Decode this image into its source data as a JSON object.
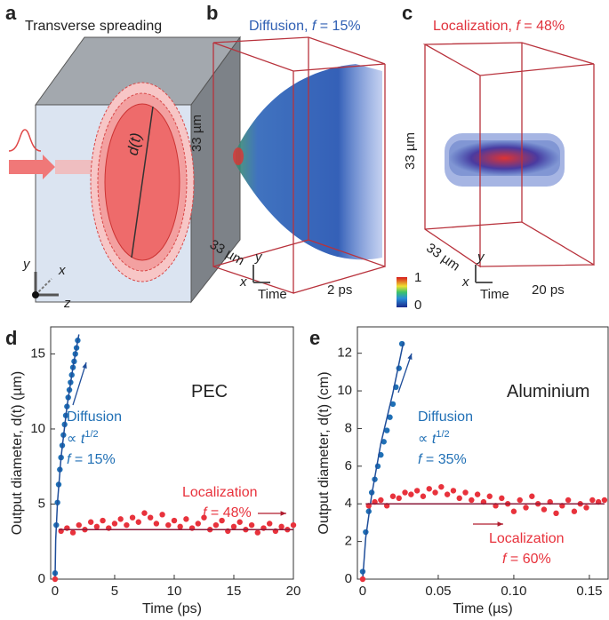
{
  "panels": {
    "a": {
      "label": "a",
      "title": "Transverse spreading",
      "diameter": "d(t)",
      "axes": [
        "y",
        "x",
        "z"
      ]
    },
    "b": {
      "label": "b",
      "title_parts": [
        {
          "text": "Diffusion, "
        },
        {
          "text": "f",
          "italic": true
        },
        {
          "text": " = 15%"
        }
      ],
      "size_y": "33 µm",
      "size_x": "33 µm",
      "axes": [
        "y",
        "x",
        "Time"
      ],
      "time": "2 ps"
    },
    "colorbar": {
      "max": 1,
      "min": 0
    },
    "c": {
      "label": "c",
      "title_parts": [
        {
          "text": "Localization, "
        },
        {
          "text": "f",
          "italic": true
        },
        {
          "text": " = 48%"
        }
      ],
      "size_y": "33 µm",
      "size_x": "33 µm",
      "axes": [
        "y",
        "x",
        "Time"
      ],
      "time": "20 ps"
    }
  },
  "chart_data": [
    {
      "type": "scatter",
      "panel": "d",
      "xlabel": "Time (ps)",
      "ylabel": "Output diameter, d(t) (µm)",
      "xlim": [
        -0.37,
        20
      ],
      "ylim": [
        0,
        16.8
      ],
      "xticks": [
        0,
        5,
        10,
        15,
        20
      ],
      "yticks": [
        0,
        5,
        10,
        15
      ],
      "series": [
        {
          "color": "#1f6fb5",
          "style": "points",
          "x": [
            0,
            0.1,
            0.2,
            0.3,
            0.4,
            0.5,
            0.6,
            0.7,
            0.8,
            0.9,
            1.0,
            1.1,
            1.2,
            1.3,
            1.4,
            1.5,
            1.6,
            1.7,
            1.8,
            1.9
          ],
          "values": [
            0.4,
            3.6,
            5.1,
            6.3,
            7.3,
            8.1,
            8.9,
            9.6,
            10.3,
            10.9,
            11.5,
            12.1,
            12.6,
            13.1,
            13.6,
            14.1,
            14.5,
            15.0,
            15.4,
            15.9
          ]
        },
        {
          "color": "#1f4e9a",
          "style": "line",
          "x": [
            0,
            0.05,
            0.2,
            0.5,
            1,
            1.5,
            2
          ],
          "values": [
            0,
            2.6,
            5.1,
            8.1,
            11.5,
            14.1,
            16.3
          ]
        },
        {
          "color": "#e8323c",
          "style": "points",
          "x": [
            0,
            0.5,
            1,
            1.5,
            2,
            2.5,
            3,
            3.5,
            4,
            4.5,
            5,
            5.5,
            6,
            6.5,
            7,
            7.5,
            8,
            8.5,
            9,
            9.5,
            10,
            10.5,
            11,
            11.5,
            12,
            12.5,
            13,
            13.5,
            14,
            14.5,
            15,
            15.5,
            16,
            16.5,
            17,
            17.5,
            18,
            18.5,
            19,
            19.5,
            20
          ],
          "values": [
            0,
            3.2,
            3.4,
            3.1,
            3.6,
            3.3,
            3.8,
            3.5,
            3.9,
            3.4,
            3.7,
            4.0,
            3.6,
            4.1,
            3.8,
            4.4,
            4.1,
            3.7,
            4.3,
            3.6,
            3.9,
            3.5,
            4.0,
            3.4,
            3.7,
            4.1,
            3.3,
            3.6,
            3.9,
            3.2,
            3.5,
            3.8,
            3.3,
            3.6,
            3.1,
            3.4,
            3.7,
            3.2,
            3.5,
            3.3,
            3.6
          ]
        },
        {
          "color": "#8b1a3a",
          "style": "line",
          "x": [
            0.3,
            20
          ],
          "values": [
            3.3,
            3.3
          ]
        }
      ],
      "annotations": [
        {
          "color": "#222222",
          "size": 20,
          "parts": [
            {
              "text": "PEC"
            }
          ]
        },
        {
          "color": "#1f6fb5",
          "size": 16,
          "parts": [
            {
              "text": "Diffusion"
            }
          ]
        },
        {
          "color": "#1f6fb5",
          "size": 16,
          "parts": [
            {
              "text": "∝ "
            },
            {
              "text": "t",
              "italic": true
            },
            {
              "text": "1/2",
              "sup": true
            }
          ]
        },
        {
          "color": "#1f6fb5",
          "size": 16,
          "parts": [
            {
              "text": "f",
              "italic": true
            },
            {
              "text": " = 15%"
            }
          ]
        },
        {
          "color": "#e8323c",
          "size": 16,
          "parts": [
            {
              "text": "Localization"
            }
          ]
        },
        {
          "color": "#e8323c",
          "size": 16,
          "parts": [
            {
              "text": "f",
              "italic": true
            },
            {
              "text": " = 48%"
            }
          ]
        }
      ]
    },
    {
      "type": "scatter",
      "panel": "e",
      "xlabel": "Time (µs)",
      "ylabel": "Output diameter, d(t) (cm)",
      "xlim": [
        -0.0035,
        0.1624
      ],
      "ylim": [
        0,
        13.4
      ],
      "xticks": [
        0,
        0.05,
        {
          "value": 0.1,
          "label": "0.10"
        },
        0.15
      ],
      "yticks": [
        0,
        2,
        4,
        6,
        8,
        10,
        12
      ],
      "series": [
        {
          "color": "#1f6fb5",
          "style": "points",
          "x": [
            0,
            0.002,
            0.004,
            0.006,
            0.008,
            0.01,
            0.012,
            0.014,
            0.016,
            0.018,
            0.02,
            0.022,
            0.024,
            0.026
          ],
          "values": [
            0.4,
            2.5,
            3.6,
            4.6,
            5.3,
            6.0,
            6.6,
            7.3,
            7.9,
            8.6,
            9.3,
            10.2,
            11.2,
            12.5
          ]
        },
        {
          "color": "#1f4e9a",
          "style": "line",
          "x": [
            0,
            0.002,
            0.006,
            0.012,
            0.02,
            0.027
          ],
          "values": [
            0,
            2.2,
            4.5,
            7.2,
            9.9,
            12.6
          ]
        },
        {
          "color": "#e8323c",
          "style": "points",
          "x": [
            0,
            0.004,
            0.008,
            0.012,
            0.016,
            0.02,
            0.024,
            0.028,
            0.032,
            0.036,
            0.04,
            0.044,
            0.048,
            0.052,
            0.056,
            0.06,
            0.064,
            0.068,
            0.072,
            0.076,
            0.08,
            0.084,
            0.088,
            0.092,
            0.096,
            0.1,
            0.104,
            0.108,
            0.112,
            0.116,
            0.12,
            0.124,
            0.128,
            0.132,
            0.136,
            0.14,
            0.144,
            0.148,
            0.152,
            0.156,
            0.16
          ],
          "values": [
            0,
            3.9,
            4.1,
            4.2,
            3.9,
            4.4,
            4.3,
            4.6,
            4.5,
            4.7,
            4.4,
            4.8,
            4.6,
            4.9,
            4.5,
            4.7,
            4.3,
            4.6,
            4.2,
            4.5,
            4.1,
            4.4,
            3.9,
            4.3,
            4.0,
            3.6,
            4.2,
            3.8,
            4.4,
            4.0,
            3.7,
            4.1,
            3.5,
            3.9,
            4.2,
            3.6,
            4.0,
            3.8,
            4.2,
            4.1,
            4.2
          ]
        },
        {
          "color": "#8b1a3a",
          "style": "line",
          "x": [
            0.002,
            0.16
          ],
          "values": [
            4.0,
            4.0
          ]
        }
      ],
      "annotations": [
        {
          "color": "#222222",
          "size": 20,
          "parts": [
            {
              "text": "Aluminium"
            }
          ]
        },
        {
          "color": "#1f6fb5",
          "size": 16,
          "parts": [
            {
              "text": "Diffusion"
            }
          ]
        },
        {
          "color": "#1f6fb5",
          "size": 16,
          "parts": [
            {
              "text": "∝ "
            },
            {
              "text": "t",
              "italic": true
            },
            {
              "text": "1/2",
              "sup": true
            }
          ]
        },
        {
          "color": "#1f6fb5",
          "size": 16,
          "parts": [
            {
              "text": "f",
              "italic": true
            },
            {
              "text": " = 35%"
            }
          ]
        },
        {
          "color": "#e8323c",
          "size": 16,
          "parts": [
            {
              "text": "Localization"
            }
          ]
        },
        {
          "color": "#e8323c",
          "size": 16,
          "parts": [
            {
              "text": "f",
              "italic": true
            },
            {
              "text": " = 60%"
            }
          ]
        }
      ]
    }
  ]
}
